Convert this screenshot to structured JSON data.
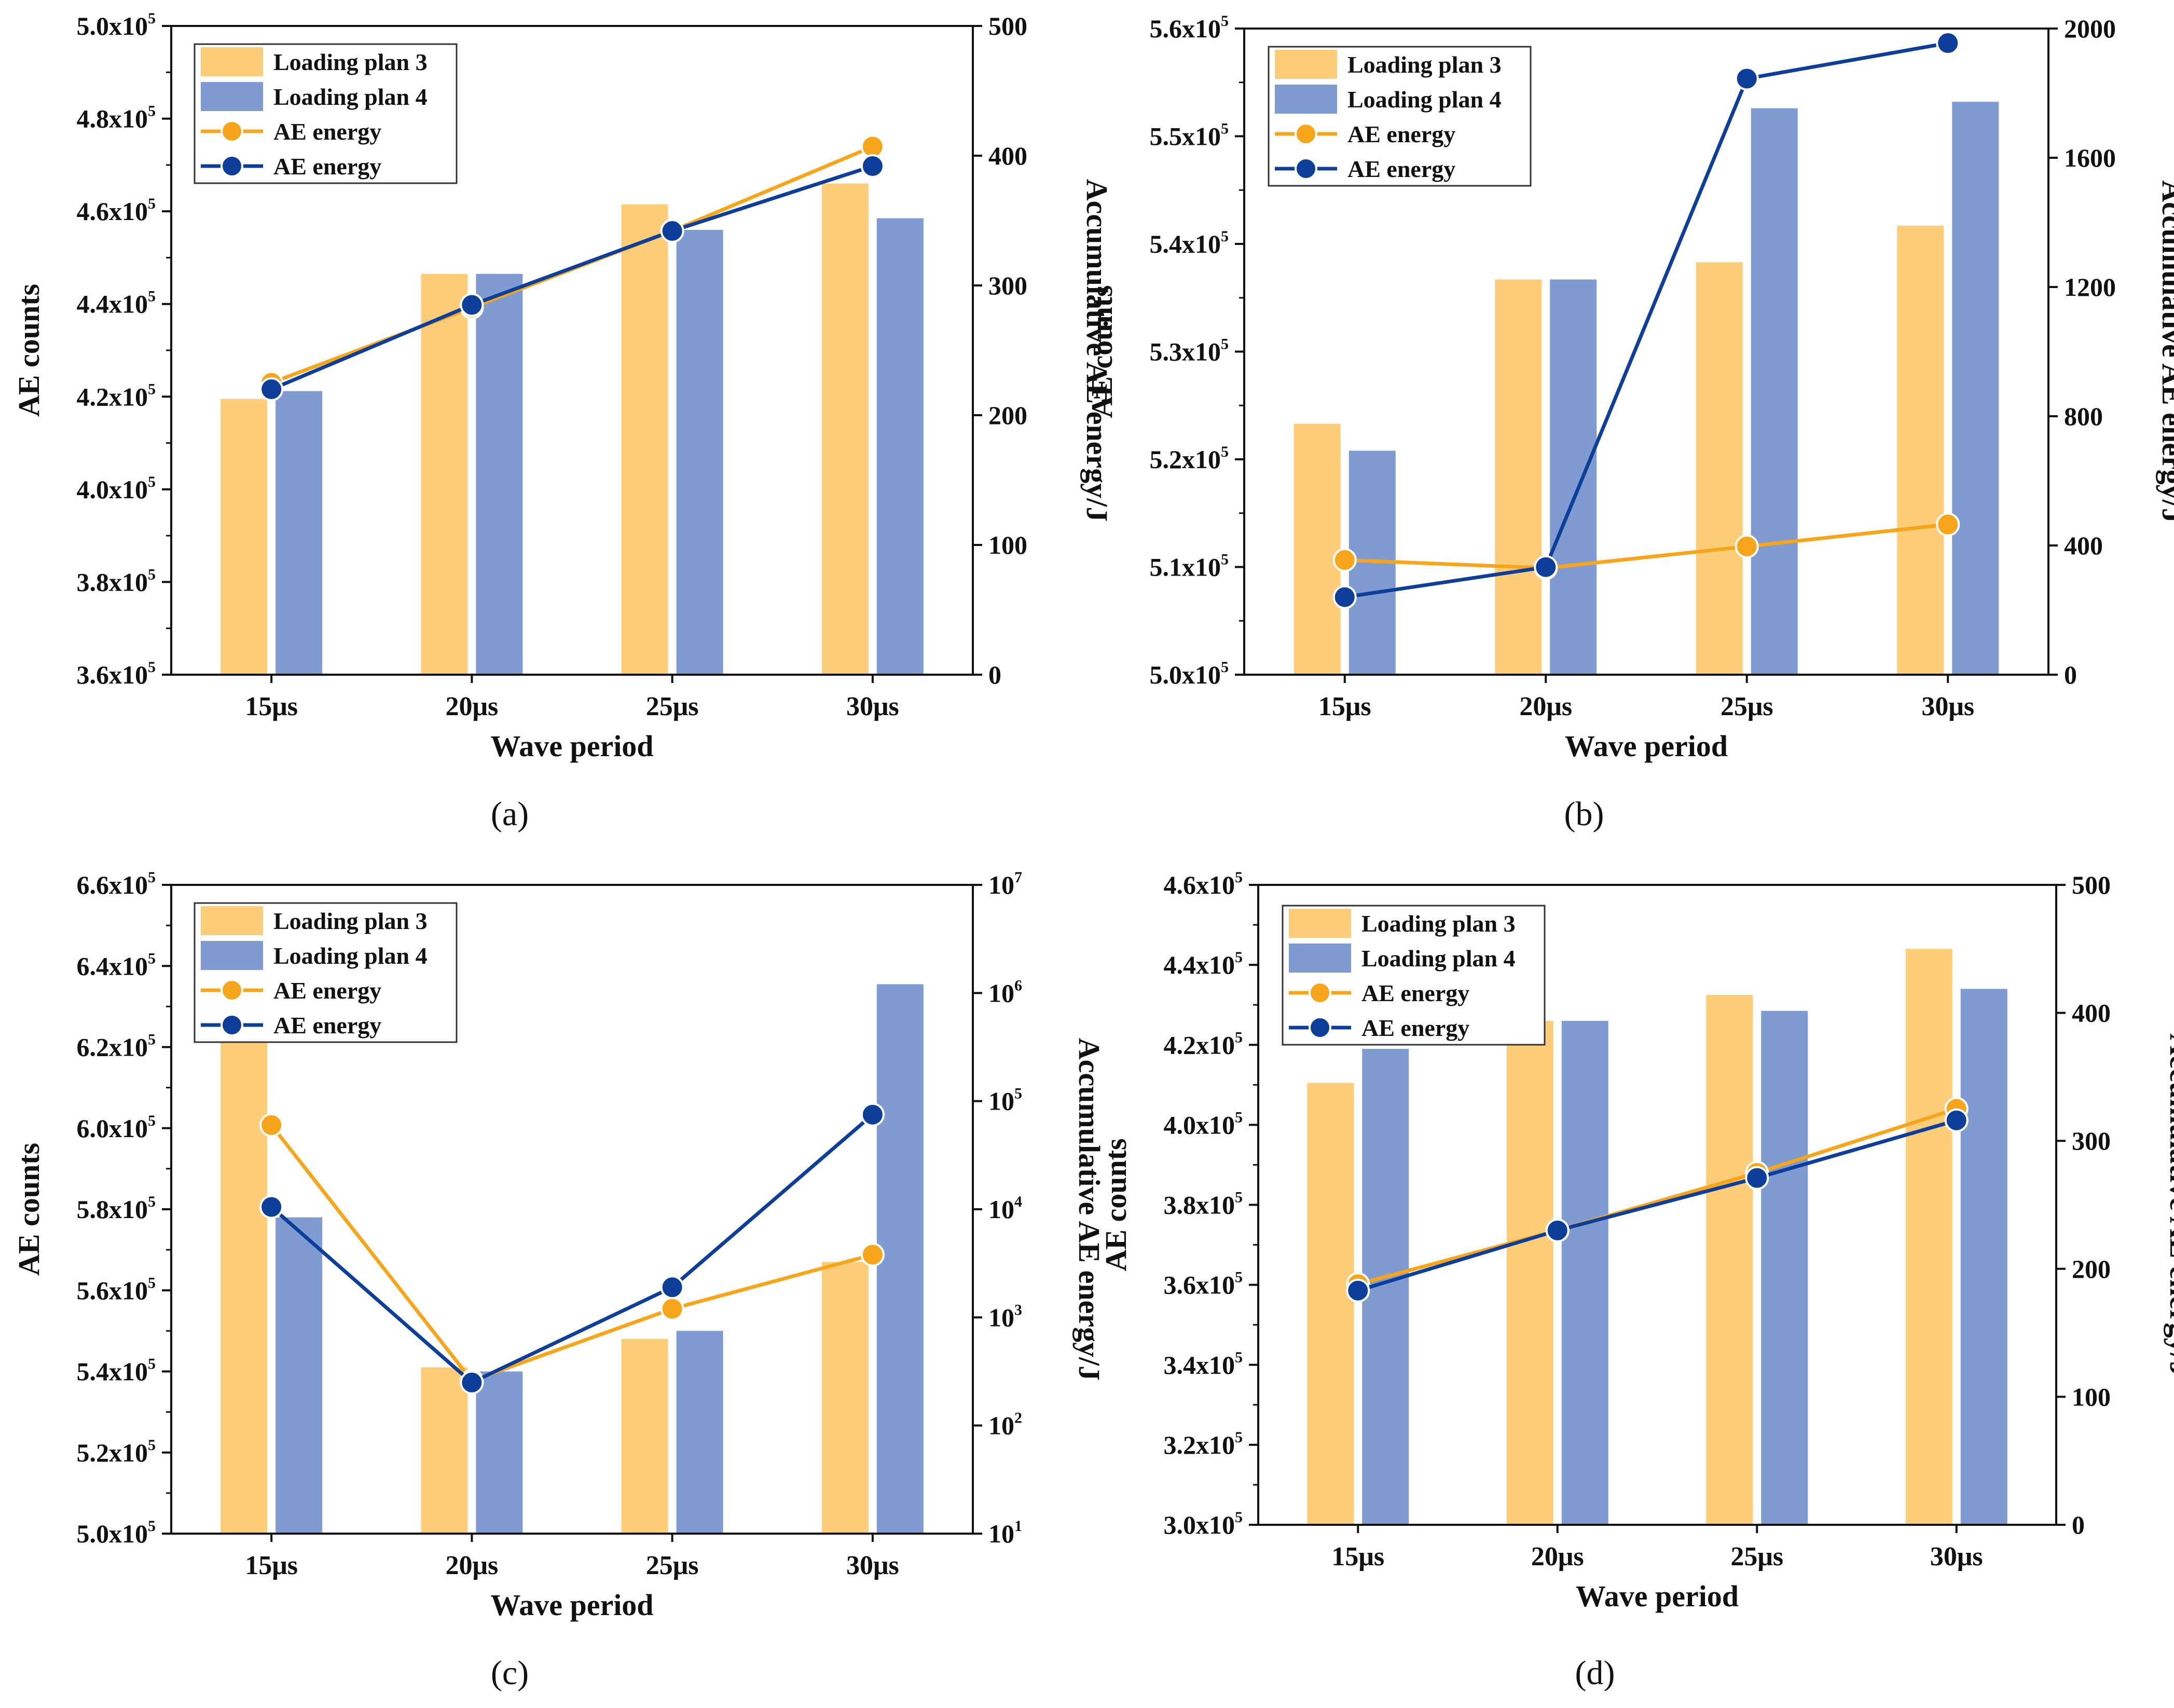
{
  "colors": {
    "plan3_bar": "#fdcd79",
    "plan4_bar": "#7f9bd1",
    "plan3_line": "#f7a61c",
    "plan4_line": "#0d3f9a"
  },
  "chart_data": [
    {
      "type": "bar",
      "caption_letter": "a",
      "xlabel": "Wave period",
      "ylabel": "AE counts",
      "ylabel_right": "Accumulative AE energy/J",
      "categories": [
        "15μs",
        "20μs",
        "25μs",
        "30μs"
      ],
      "ylim": [
        360000,
        500000
      ],
      "y_ticks": [
        {
          "v": 360000,
          "m": "3.6x10",
          "e": "5"
        },
        {
          "v": 380000,
          "m": "3.8x10",
          "e": "5"
        },
        {
          "v": 400000,
          "m": "4.0x10",
          "e": "5"
        },
        {
          "v": 420000,
          "m": "4.2x10",
          "e": "5"
        },
        {
          "v": 440000,
          "m": "4.4x10",
          "e": "5"
        },
        {
          "v": 460000,
          "m": "4.6x10",
          "e": "5"
        },
        {
          "v": 480000,
          "m": "4.8x10",
          "e": "5"
        },
        {
          "v": 500000,
          "m": "5.0x10",
          "e": "5"
        }
      ],
      "y2_scale": "linear",
      "y2lim": [
        0,
        500
      ],
      "y2_ticks": [
        {
          "v": 0,
          "m": "0"
        },
        {
          "v": 100,
          "m": "100"
        },
        {
          "v": 200,
          "m": "200"
        },
        {
          "v": 300,
          "m": "300"
        },
        {
          "v": 400,
          "m": "400"
        },
        {
          "v": 500,
          "m": "500"
        }
      ],
      "legend": [
        "Loading plan 3",
        "Loading plan 4",
        "AE energy",
        "AE energy"
      ],
      "series": [
        {
          "name": "Loading plan 3",
          "kind": "bar",
          "values": [
            419500,
            446500,
            461500,
            466000
          ]
        },
        {
          "name": "Loading plan 4",
          "kind": "bar",
          "values": [
            421200,
            446500,
            456000,
            458500
          ]
        },
        {
          "name": "AE energy (plan 3)",
          "kind": "line",
          "axis": "right",
          "values": [
            225,
            283,
            342,
            407
          ]
        },
        {
          "name": "AE energy (plan 4)",
          "kind": "line",
          "axis": "right",
          "values": [
            220,
            285,
            342,
            392
          ]
        }
      ]
    },
    {
      "type": "bar",
      "caption_letter": "b",
      "xlabel": "Wave period",
      "ylabel": "AE counts",
      "ylabel_right": "Accumulative AE energy/J",
      "categories": [
        "15μs",
        "20μs",
        "25μs",
        "30μs"
      ],
      "ylim": [
        500000,
        560000
      ],
      "y_ticks": [
        {
          "v": 500000,
          "m": "5.0x10",
          "e": "5"
        },
        {
          "v": 510000,
          "m": "5.1x10",
          "e": "5"
        },
        {
          "v": 520000,
          "m": "5.2x10",
          "e": "5"
        },
        {
          "v": 530000,
          "m": "5.3x10",
          "e": "5"
        },
        {
          "v": 540000,
          "m": "5.4x10",
          "e": "5"
        },
        {
          "v": 550000,
          "m": "5.5x10",
          "e": "5"
        },
        {
          "v": 560000,
          "m": "5.6x10",
          "e": "5"
        }
      ],
      "y2_scale": "linear",
      "y2lim": [
        0,
        2000
      ],
      "y2_ticks": [
        {
          "v": 0,
          "m": "0"
        },
        {
          "v": 400,
          "m": "400"
        },
        {
          "v": 800,
          "m": "800"
        },
        {
          "v": 1200,
          "m": "1200"
        },
        {
          "v": 1600,
          "m": "1600"
        },
        {
          "v": 2000,
          "m": "2000"
        }
      ],
      "legend": [
        "Loading plan 3",
        "Loading plan 4",
        "AE energy",
        "AE energy"
      ],
      "series": [
        {
          "name": "Loading plan 3",
          "kind": "bar",
          "values": [
            523300,
            536700,
            538300,
            541700
          ]
        },
        {
          "name": "Loading plan 4",
          "kind": "bar",
          "values": [
            520800,
            536700,
            552600,
            553200
          ]
        },
        {
          "name": "AE energy (plan 3)",
          "kind": "line",
          "axis": "right",
          "values": [
            355,
            330,
            397,
            465
          ]
        },
        {
          "name": "AE energy (plan 4)",
          "kind": "line",
          "axis": "right",
          "values": [
            240,
            333,
            1845,
            1955
          ]
        }
      ]
    },
    {
      "type": "bar",
      "caption_letter": "c",
      "xlabel": "Wave period",
      "ylabel": "AE counts",
      "ylabel_right": "Accumulative AE energy/J",
      "categories": [
        "15μs",
        "20μs",
        "25μs",
        "30μs"
      ],
      "ylim": [
        500000,
        660000
      ],
      "y_ticks": [
        {
          "v": 500000,
          "m": "5.0x10",
          "e": "5"
        },
        {
          "v": 520000,
          "m": "5.2x10",
          "e": "5"
        },
        {
          "v": 540000,
          "m": "5.4x10",
          "e": "5"
        },
        {
          "v": 560000,
          "m": "5.6x10",
          "e": "5"
        },
        {
          "v": 580000,
          "m": "5.8x10",
          "e": "5"
        },
        {
          "v": 600000,
          "m": "6.0x10",
          "e": "5"
        },
        {
          "v": 620000,
          "m": "6.2x10",
          "e": "5"
        },
        {
          "v": 640000,
          "m": "6.4x10",
          "e": "5"
        },
        {
          "v": 660000,
          "m": "6.6x10",
          "e": "5"
        }
      ],
      "y2_scale": "log",
      "y2lim": [
        10,
        10000000
      ],
      "y2_ticks": [
        {
          "v": 10,
          "m": "10",
          "e": "1"
        },
        {
          "v": 100,
          "m": "10",
          "e": "2"
        },
        {
          "v": 1000,
          "m": "10",
          "e": "3"
        },
        {
          "v": 10000,
          "m": "10",
          "e": "4"
        },
        {
          "v": 100000,
          "m": "10",
          "e": "5"
        },
        {
          "v": 1000000,
          "m": "10",
          "e": "6"
        },
        {
          "v": 10000000,
          "m": "10",
          "e": "7"
        }
      ],
      "legend": [
        "Loading plan 3",
        "Loading plan 4",
        "AE energy",
        "AE energy"
      ],
      "series": [
        {
          "name": "Loading plan 3",
          "kind": "bar",
          "values": [
            622000,
            541000,
            548000,
            567000
          ]
        },
        {
          "name": "Loading plan 4",
          "kind": "bar",
          "values": [
            578000,
            540000,
            550000,
            635500
          ]
        },
        {
          "name": "AE energy (plan 3)",
          "kind": "line",
          "axis": "right",
          "values": [
            60000,
            260,
            1200,
            3800
          ]
        },
        {
          "name": "AE energy (plan 4)",
          "kind": "line",
          "axis": "right",
          "values": [
            10500,
            250,
            1900,
            75000
          ]
        }
      ]
    },
    {
      "type": "bar",
      "caption_letter": "d",
      "xlabel": "Wave period",
      "ylabel": "AE counts",
      "ylabel_right": "Accumulative AE energy/J",
      "categories": [
        "15μs",
        "20μs",
        "25μs",
        "30μs"
      ],
      "ylim": [
        300000,
        460000
      ],
      "y_ticks": [
        {
          "v": 300000,
          "m": "3.0x10",
          "e": "5"
        },
        {
          "v": 320000,
          "m": "3.2x10",
          "e": "5"
        },
        {
          "v": 340000,
          "m": "3.4x10",
          "e": "5"
        },
        {
          "v": 360000,
          "m": "3.6x10",
          "e": "5"
        },
        {
          "v": 380000,
          "m": "3.8x10",
          "e": "5"
        },
        {
          "v": 400000,
          "m": "4.0x10",
          "e": "5"
        },
        {
          "v": 420000,
          "m": "4.2x10",
          "e": "5"
        },
        {
          "v": 440000,
          "m": "4.4x10",
          "e": "5"
        },
        {
          "v": 460000,
          "m": "4.6x10",
          "e": "5"
        }
      ],
      "y2_scale": "linear",
      "y2lim": [
        0,
        500
      ],
      "y2_ticks": [
        {
          "v": 0,
          "m": "0"
        },
        {
          "v": 100,
          "m": "100"
        },
        {
          "v": 200,
          "m": "200"
        },
        {
          "v": 300,
          "m": "300"
        },
        {
          "v": 400,
          "m": "400"
        },
        {
          "v": 500,
          "m": "500"
        }
      ],
      "legend": [
        "Loading plan 3",
        "Loading plan 4",
        "AE energy",
        "AE energy"
      ],
      "series": [
        {
          "name": "Loading plan 3",
          "kind": "bar",
          "values": [
            410500,
            426000,
            432500,
            444000
          ]
        },
        {
          "name": "Loading plan 4",
          "kind": "bar",
          "values": [
            419000,
            426000,
            428500,
            434000
          ]
        },
        {
          "name": "AE energy (plan 3)",
          "kind": "line",
          "axis": "right",
          "values": [
            188,
            230,
            275,
            325
          ]
        },
        {
          "name": "AE energy (plan 4)",
          "kind": "line",
          "axis": "right",
          "values": [
            183,
            230,
            271,
            316
          ]
        }
      ]
    }
  ]
}
